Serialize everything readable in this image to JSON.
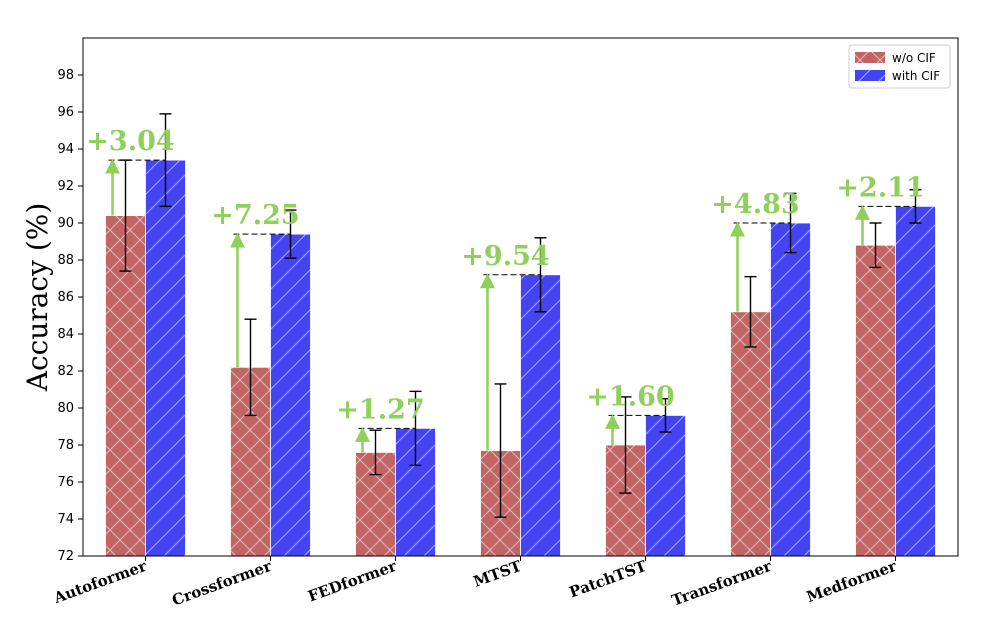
{
  "chart_data": {
    "type": "bar",
    "ylabel": "Accuracy (%)",
    "xlabel": "",
    "ylim": [
      72,
      100
    ],
    "yticks": [
      72,
      74,
      76,
      78,
      80,
      82,
      84,
      86,
      88,
      90,
      92,
      94,
      96,
      98
    ],
    "grid": false,
    "legend_position": "top-right",
    "categories": [
      "Autoformer",
      "Crossformer",
      "FEDformer",
      "MTST",
      "PatchTST",
      "Transformer",
      "Medformer"
    ],
    "series": [
      {
        "name": "w/o CIF",
        "color": "#c06464",
        "hatch": "cross",
        "values": [
          90.4,
          82.2,
          77.6,
          77.7,
          78.0,
          85.2,
          88.8
        ],
        "errors": [
          3.0,
          2.6,
          1.2,
          3.6,
          2.6,
          1.9,
          1.2
        ]
      },
      {
        "name": "with CIF",
        "color": "#4444f0",
        "hatch": "diagonal",
        "values": [
          93.4,
          89.4,
          78.9,
          87.2,
          79.6,
          90.0,
          90.9
        ],
        "errors": [
          2.5,
          1.3,
          2.0,
          2.0,
          0.9,
          1.6,
          0.9
        ]
      }
    ],
    "gains": [
      "+3.04",
      "+7.25",
      "+1.27",
      "+9.54",
      "+1.60",
      "+4.83",
      "+2.11"
    ],
    "gain_color": "#8fd05a"
  }
}
